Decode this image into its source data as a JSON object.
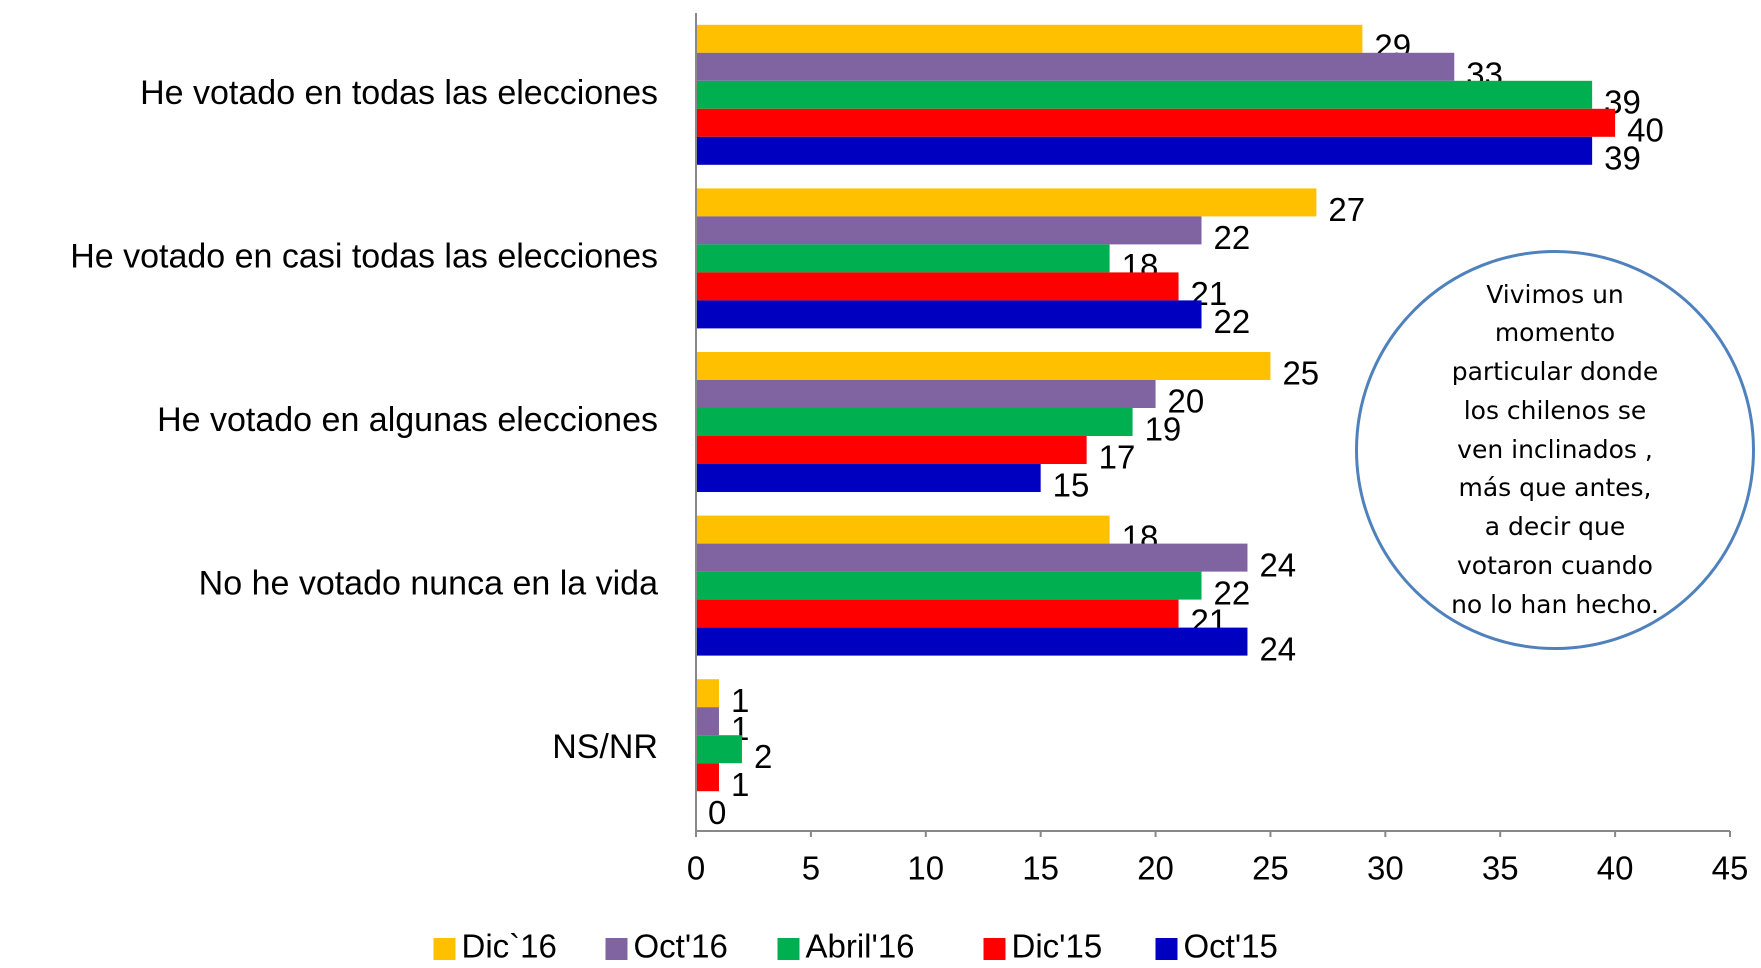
{
  "chart_data": {
    "type": "hbar",
    "categories": [
      "He votado en todas las elecciones",
      "He votado en casi todas las elecciones",
      "He votado en algunas elecciones",
      "No he votado nunca en la vida",
      "NS/NR"
    ],
    "series": [
      {
        "name": "Dic`16",
        "color": "#FFC000",
        "values": [
          29,
          27,
          25,
          18,
          1
        ]
      },
      {
        "name": "Oct'16",
        "color": "#8064A2",
        "values": [
          33,
          22,
          20,
          24,
          1
        ]
      },
      {
        "name": "Abril'16",
        "color": "#00B050",
        "values": [
          39,
          18,
          19,
          22,
          2
        ]
      },
      {
        "name": "Dic'15",
        "color": "#FF0000",
        "values": [
          40,
          21,
          17,
          21,
          1
        ]
      },
      {
        "name": "Oct'15",
        "color": "#0000C0",
        "values": [
          39,
          22,
          15,
          24,
          0
        ]
      }
    ],
    "xlim": [
      0,
      45
    ],
    "xticks": [
      0,
      5,
      10,
      15,
      20,
      25,
      30,
      35,
      40,
      45
    ],
    "annotation": "Vivimos un momento particular donde los chilenos se ven inclinados , más que antes, a decir que votaron cuando no lo han hecho."
  }
}
